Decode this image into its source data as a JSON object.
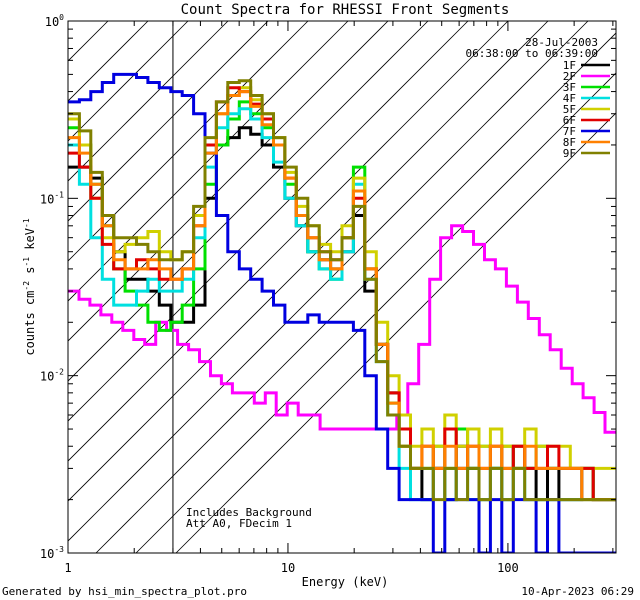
{
  "chart_data": {
    "type": "line",
    "title": "Count Spectra for RHESSI Front Segments",
    "xlabel": "Energy (keV)",
    "ylabel_main": "counts cm",
    "ylabel_sup1": "-2",
    "ylabel_mid": " s",
    "ylabel_sup2": "-1",
    "ylabel_end": " keV",
    "ylabel_sup3": "-1",
    "x_scale": "log",
    "y_scale": "log",
    "xlim": [
      1.0,
      310.0
    ],
    "ylim": [
      0.001,
      1.0
    ],
    "x_ticks": [
      {
        "value": 1,
        "label": "1"
      },
      {
        "value": 10,
        "label": "10"
      },
      {
        "value": 100,
        "label": "100"
      }
    ],
    "y_ticks": [
      {
        "value": 1,
        "base": "10",
        "exp": "0"
      },
      {
        "value": 0.1,
        "base": "10",
        "exp": "-1"
      },
      {
        "value": 0.01,
        "base": "10",
        "exp": "-2"
      },
      {
        "value": 0.001,
        "base": "10",
        "exp": "-3"
      }
    ],
    "hatched_region_max_keV": 3.0,
    "annotations_top_right": [
      "28-Jul-2003",
      "06:38:00 to 06:39:00"
    ],
    "annotations_bottom_left": [
      "Includes Background",
      "Att A0, FDecim 1"
    ],
    "legend_position": "top-right",
    "series": [
      {
        "name": "1F",
        "color": "#000000",
        "values": [
          0.15,
          0.15,
          0.13,
          0.08,
          0.05,
          0.035,
          0.035,
          0.03,
          0.025,
          0.02,
          0.02,
          0.025,
          0.1,
          0.2,
          0.22,
          0.25,
          0.23,
          0.2,
          0.15,
          0.1,
          0.07,
          0.05,
          0.045,
          0.04,
          0.05,
          0.08,
          0.03,
          0.015,
          0.008,
          0.005,
          0.003,
          0.002,
          0.003,
          0.002,
          0.004,
          0.003,
          0.002,
          0.003,
          0.002,
          0.004,
          0.003,
          0.002,
          0.003,
          0.002,
          0.002,
          0.003,
          0.002,
          0.002
        ]
      },
      {
        "name": "2F",
        "color": "#ff00ff",
        "values": [
          0.03,
          0.027,
          0.025,
          0.022,
          0.02,
          0.018,
          0.016,
          0.015,
          0.02,
          0.018,
          0.015,
          0.014,
          0.012,
          0.01,
          0.009,
          0.008,
          0.008,
          0.007,
          0.008,
          0.006,
          0.007,
          0.006,
          0.006,
          0.005,
          0.005,
          0.005,
          0.005,
          0.005,
          0.005,
          0.005,
          0.006,
          0.009,
          0.015,
          0.035,
          0.06,
          0.07,
          0.065,
          0.055,
          0.045,
          0.04,
          0.032,
          0.026,
          0.021,
          0.017,
          0.014,
          0.011,
          0.009,
          0.0075,
          0.0062,
          0.0048
        ]
      },
      {
        "name": "3F",
        "color": "#00e000",
        "values": [
          0.25,
          0.2,
          0.12,
          0.07,
          0.04,
          0.03,
          0.025,
          0.02,
          0.018,
          0.02,
          0.025,
          0.04,
          0.12,
          0.2,
          0.28,
          0.35,
          0.3,
          0.25,
          0.2,
          0.12,
          0.08,
          0.05,
          0.04,
          0.035,
          0.06,
          0.15,
          0.04,
          0.015,
          0.007,
          0.004,
          0.003,
          0.003,
          0.004,
          0.003,
          0.005,
          0.003,
          0.004,
          0.003,
          0.004,
          0.003,
          0.003,
          0.004,
          0.003,
          0.003,
          0.003,
          0.003,
          0.002,
          0.002
        ]
      },
      {
        "name": "4F",
        "color": "#00e0e0",
        "values": [
          0.2,
          0.12,
          0.06,
          0.035,
          0.025,
          0.025,
          0.03,
          0.035,
          0.03,
          0.03,
          0.035,
          0.06,
          0.15,
          0.25,
          0.3,
          0.32,
          0.28,
          0.22,
          0.16,
          0.1,
          0.07,
          0.05,
          0.04,
          0.035,
          0.05,
          0.12,
          0.035,
          0.012,
          0.006,
          0.003,
          0.002,
          0.002,
          0.003,
          0.002,
          0.003,
          0.002,
          0.002,
          0.003,
          0.002,
          0.003,
          0.002,
          0.002,
          0.002,
          0.002,
          0.002,
          0.002,
          0.002,
          0.002
        ]
      },
      {
        "name": "5F",
        "color": "#d0d000",
        "values": [
          0.28,
          0.2,
          0.1,
          0.06,
          0.05,
          0.055,
          0.06,
          0.065,
          0.05,
          0.045,
          0.05,
          0.08,
          0.2,
          0.3,
          0.38,
          0.42,
          0.36,
          0.3,
          0.22,
          0.14,
          0.09,
          0.07,
          0.055,
          0.05,
          0.07,
          0.13,
          0.05,
          0.02,
          0.01,
          0.006,
          0.004,
          0.005,
          0.004,
          0.006,
          0.004,
          0.005,
          0.004,
          0.005,
          0.004,
          0.004,
          0.005,
          0.004,
          0.004,
          0.004,
          0.003,
          0.003,
          0.003,
          0.003
        ]
      },
      {
        "name": "6F",
        "color": "#e00000",
        "values": [
          0.18,
          0.15,
          0.1,
          0.055,
          0.04,
          0.04,
          0.045,
          0.04,
          0.035,
          0.035,
          0.04,
          0.07,
          0.2,
          0.35,
          0.42,
          0.4,
          0.34,
          0.28,
          0.2,
          0.13,
          0.08,
          0.06,
          0.05,
          0.045,
          0.06,
          0.1,
          0.04,
          0.015,
          0.008,
          0.005,
          0.003,
          0.004,
          0.003,
          0.005,
          0.003,
          0.004,
          0.003,
          0.004,
          0.003,
          0.004,
          0.003,
          0.003,
          0.004,
          0.003,
          0.003,
          0.003,
          0.002,
          0.002
        ]
      },
      {
        "name": "7F",
        "color": "#0000e0",
        "values": [
          0.35,
          0.36,
          0.4,
          0.45,
          0.5,
          0.5,
          0.48,
          0.45,
          0.42,
          0.4,
          0.38,
          0.3,
          0.18,
          0.08,
          0.05,
          0.04,
          0.035,
          0.03,
          0.025,
          0.02,
          0.02,
          0.022,
          0.02,
          0.02,
          0.02,
          0.018,
          0.01,
          0.005,
          0.003,
          0.002,
          0.002,
          0.002,
          0.001,
          0.002,
          0.002,
          0.002,
          0.001,
          0.002,
          0.001,
          0.002,
          0.002,
          0.001,
          0.002,
          0.001,
          0.001,
          0.001,
          0.001,
          0.001
        ]
      },
      {
        "name": "8F",
        "color": "#ff8000",
        "values": [
          0.22,
          0.18,
          0.12,
          0.07,
          0.045,
          0.04,
          0.04,
          0.045,
          0.04,
          0.035,
          0.04,
          0.07,
          0.18,
          0.3,
          0.38,
          0.4,
          0.33,
          0.26,
          0.2,
          0.13,
          0.08,
          0.06,
          0.045,
          0.04,
          0.06,
          0.11,
          0.04,
          0.015,
          0.007,
          0.004,
          0.003,
          0.004,
          0.003,
          0.004,
          0.003,
          0.004,
          0.003,
          0.004,
          0.003,
          0.003,
          0.004,
          0.003,
          0.003,
          0.003,
          0.003,
          0.002,
          0.002,
          0.002
        ]
      },
      {
        "name": "9F",
        "color": "#808000",
        "values": [
          0.3,
          0.24,
          0.14,
          0.08,
          0.06,
          0.06,
          0.055,
          0.05,
          0.045,
          0.045,
          0.05,
          0.09,
          0.22,
          0.35,
          0.45,
          0.46,
          0.38,
          0.3,
          0.22,
          0.15,
          0.1,
          0.07,
          0.05,
          0.045,
          0.06,
          0.09,
          0.035,
          0.012,
          0.006,
          0.004,
          0.003,
          0.003,
          0.002,
          0.003,
          0.002,
          0.003,
          0.002,
          0.003,
          0.002,
          0.003,
          0.002,
          0.002,
          0.002,
          0.002,
          0.002,
          0.002,
          0.002,
          0.002
        ]
      }
    ]
  },
  "footer": {
    "left": "Generated by hsi_min_spectra_plot.pro",
    "right": "10-Apr-2023 06:29"
  }
}
